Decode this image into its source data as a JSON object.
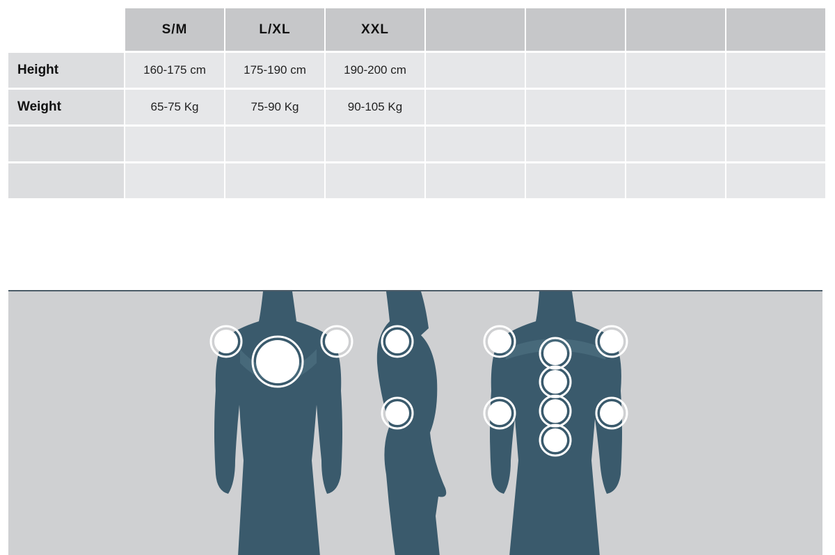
{
  "size_table": {
    "columns": [
      "S/M",
      "L/XL",
      "XXL",
      "",
      "",
      "",
      ""
    ],
    "rows": [
      {
        "label": "Height",
        "values": [
          "160-175 cm",
          "175-190 cm",
          "190-200 cm",
          "",
          "",
          "",
          ""
        ]
      },
      {
        "label": "Weight",
        "values": [
          "65-75 Kg",
          "75-90 Kg",
          "90-105 Kg",
          "",
          "",
          "",
          ""
        ]
      },
      {
        "label": "",
        "values": [
          "",
          "",
          "",
          "",
          "",
          "",
          ""
        ]
      },
      {
        "label": "",
        "values": [
          "",
          "",
          "",
          "",
          "",
          "",
          ""
        ]
      }
    ]
  },
  "illustration": {
    "views": [
      "front-figure",
      "side-figure",
      "back-figure"
    ],
    "body_color": "#3a5a6c",
    "background_color": "#cfd0d2",
    "marker_color": "#ffffff"
  }
}
